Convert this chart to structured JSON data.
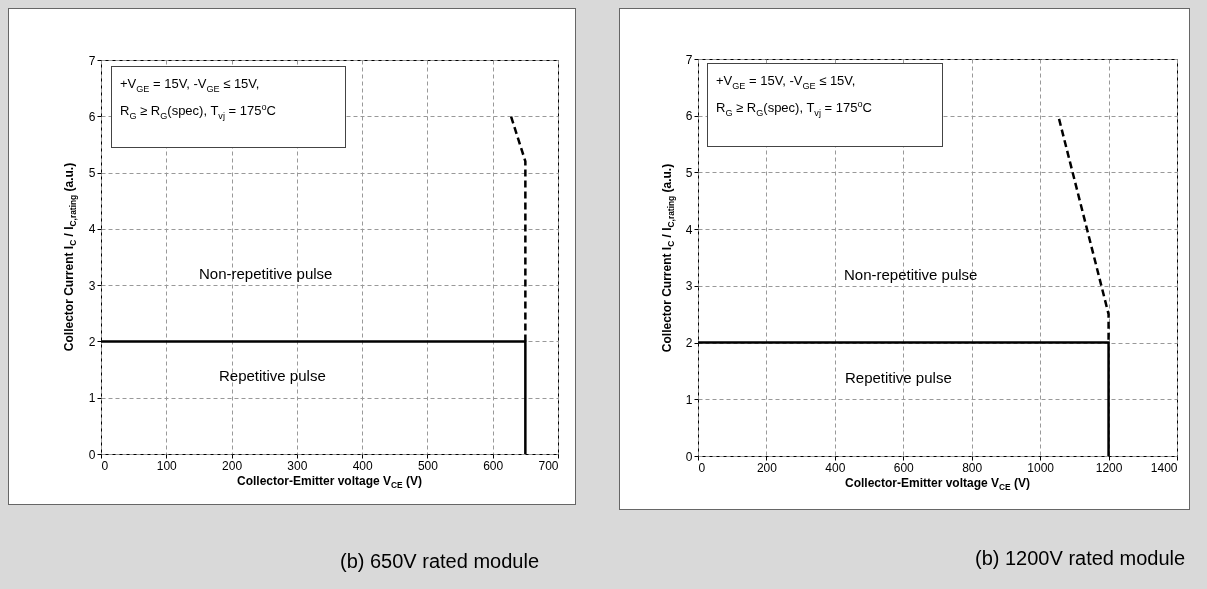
{
  "chart_data": [
    {
      "type": "line",
      "title": "(b) 650V rated module",
      "xlabel": "Collector-Emitter voltage V$_{CE}$ (V)",
      "ylabel": "Collector Current I$_{C}$ / I$_{C,rating}$ (a.u.)",
      "xlim": [
        0,
        700
      ],
      "xticks": [
        0,
        100,
        200,
        300,
        400,
        500,
        600,
        700
      ],
      "ylim": [
        0,
        7
      ],
      "yticks": [
        0,
        1,
        2,
        3,
        4,
        5,
        6,
        7
      ],
      "grid": true,
      "series": [
        {
          "color": "#000000",
          "line_style": "solid",
          "x": [
            0,
            650,
            650
          ],
          "values": [
            2,
            2,
            0
          ]
        },
        {
          "color": "#000000",
          "line_style": "dashed",
          "x": [
            650,
            650,
            628
          ],
          "values": [
            2,
            5.2,
            6
          ]
        }
      ],
      "annotations": [
        "+V$_{GE}$ = 15V, -V$_{GE}$ ≤ 15V,",
        "R$_{G}$ ≥ R$_{G}$(spec), T$_{vj}$ = 175$^{o}$C",
        "Non-repetitive pulse",
        "Repetitive pulse"
      ]
    },
    {
      "type": "line",
      "title": "(b) 1200V rated module",
      "xlabel": "Collector-Emitter voltage V$_{CE}$ (V)",
      "ylabel": "Collector Current I$_{C}$ / I$_{C,rating}$ (a.u.)",
      "xlim": [
        0,
        1400
      ],
      "xticks": [
        0,
        200,
        400,
        600,
        800,
        1000,
        1200,
        1400
      ],
      "ylim": [
        0,
        7
      ],
      "yticks": [
        0,
        1,
        2,
        3,
        4,
        5,
        6,
        7
      ],
      "grid": true,
      "series": [
        {
          "color": "#000000",
          "line_style": "solid",
          "x": [
            0,
            1200,
            1200
          ],
          "values": [
            2,
            2,
            0
          ]
        },
        {
          "color": "#000000",
          "line_style": "dashed",
          "x": [
            1200,
            1200,
            1055
          ],
          "values": [
            2.05,
            2.5,
            5.95
          ]
        }
      ],
      "annotations": [
        "+V$_{GE}$ = 15V, -V$_{GE}$ ≤ 15V,",
        "R$_{G}$ ≥ R$_{G}$(spec), T$_{vj}$ = 175$^{o}$C",
        "Non-repetitive pulse",
        "Repetitive pulse"
      ]
    }
  ]
}
